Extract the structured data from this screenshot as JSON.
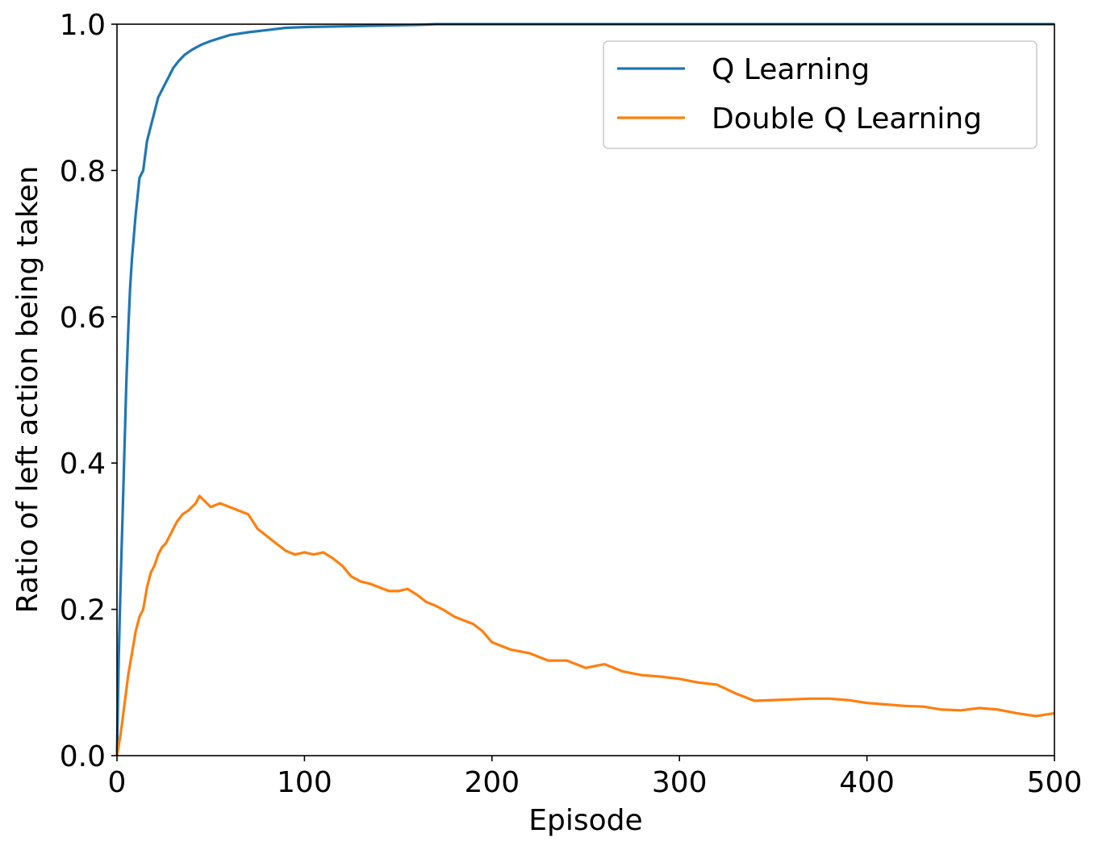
{
  "chart_data": {
    "type": "line",
    "title": "",
    "xlabel": "Episode",
    "ylabel": "Ratio of left action being taken",
    "xlim": [
      0,
      500
    ],
    "ylim": [
      0.0,
      1.0
    ],
    "xticks": [
      "0",
      "100",
      "200",
      "300",
      "400",
      "500"
    ],
    "yticks": [
      "0.0",
      "0.2",
      "0.4",
      "0.6",
      "0.8",
      "1.0"
    ],
    "grid": false,
    "legend_position": "top-right",
    "series": [
      {
        "name": "Q Learning",
        "color": "#1f77b4",
        "x": [
          0,
          1,
          2,
          3,
          4,
          5,
          6,
          7,
          8,
          9,
          10,
          12,
          14,
          16,
          18,
          20,
          22,
          24,
          26,
          28,
          30,
          33,
          36,
          40,
          45,
          50,
          55,
          60,
          70,
          80,
          90,
          100,
          120,
          140,
          160,
          170,
          200,
          300,
          400,
          500
        ],
        "y": [
          0.0,
          0.14,
          0.24,
          0.33,
          0.42,
          0.51,
          0.58,
          0.64,
          0.68,
          0.71,
          0.74,
          0.79,
          0.8,
          0.84,
          0.86,
          0.88,
          0.9,
          0.91,
          0.92,
          0.93,
          0.94,
          0.95,
          0.958,
          0.965,
          0.972,
          0.977,
          0.981,
          0.985,
          0.989,
          0.992,
          0.995,
          0.996,
          0.997,
          0.998,
          0.999,
          1.0,
          1.0,
          1.0,
          1.0,
          1.0
        ]
      },
      {
        "name": "Double Q Learning",
        "color": "#ff7f0e",
        "x": [
          0,
          2,
          4,
          6,
          8,
          10,
          12,
          14,
          16,
          18,
          20,
          22,
          24,
          26,
          28,
          30,
          32,
          35,
          38,
          40,
          42,
          44,
          46,
          48,
          50,
          55,
          60,
          65,
          70,
          75,
          80,
          85,
          90,
          95,
          100,
          105,
          110,
          115,
          120,
          125,
          130,
          135,
          140,
          145,
          150,
          155,
          160,
          165,
          170,
          175,
          180,
          185,
          190,
          195,
          200,
          210,
          220,
          230,
          240,
          250,
          260,
          270,
          280,
          290,
          300,
          310,
          320,
          330,
          340,
          350,
          360,
          370,
          380,
          390,
          400,
          410,
          420,
          430,
          440,
          450,
          460,
          470,
          480,
          490,
          500
        ],
        "y": [
          0.0,
          0.03,
          0.07,
          0.11,
          0.14,
          0.17,
          0.19,
          0.2,
          0.23,
          0.25,
          0.26,
          0.275,
          0.285,
          0.29,
          0.3,
          0.31,
          0.32,
          0.33,
          0.335,
          0.34,
          0.345,
          0.355,
          0.35,
          0.345,
          0.34,
          0.345,
          0.34,
          0.335,
          0.33,
          0.31,
          0.3,
          0.29,
          0.28,
          0.275,
          0.278,
          0.275,
          0.278,
          0.27,
          0.26,
          0.245,
          0.238,
          0.235,
          0.23,
          0.225,
          0.225,
          0.228,
          0.22,
          0.21,
          0.205,
          0.198,
          0.19,
          0.185,
          0.18,
          0.17,
          0.155,
          0.145,
          0.14,
          0.13,
          0.13,
          0.12,
          0.125,
          0.115,
          0.11,
          0.108,
          0.105,
          0.1,
          0.097,
          0.085,
          0.075,
          0.076,
          0.077,
          0.078,
          0.078,
          0.076,
          0.072,
          0.07,
          0.068,
          0.067,
          0.063,
          0.062,
          0.065,
          0.063,
          0.058,
          0.054,
          0.058
        ]
      }
    ]
  }
}
